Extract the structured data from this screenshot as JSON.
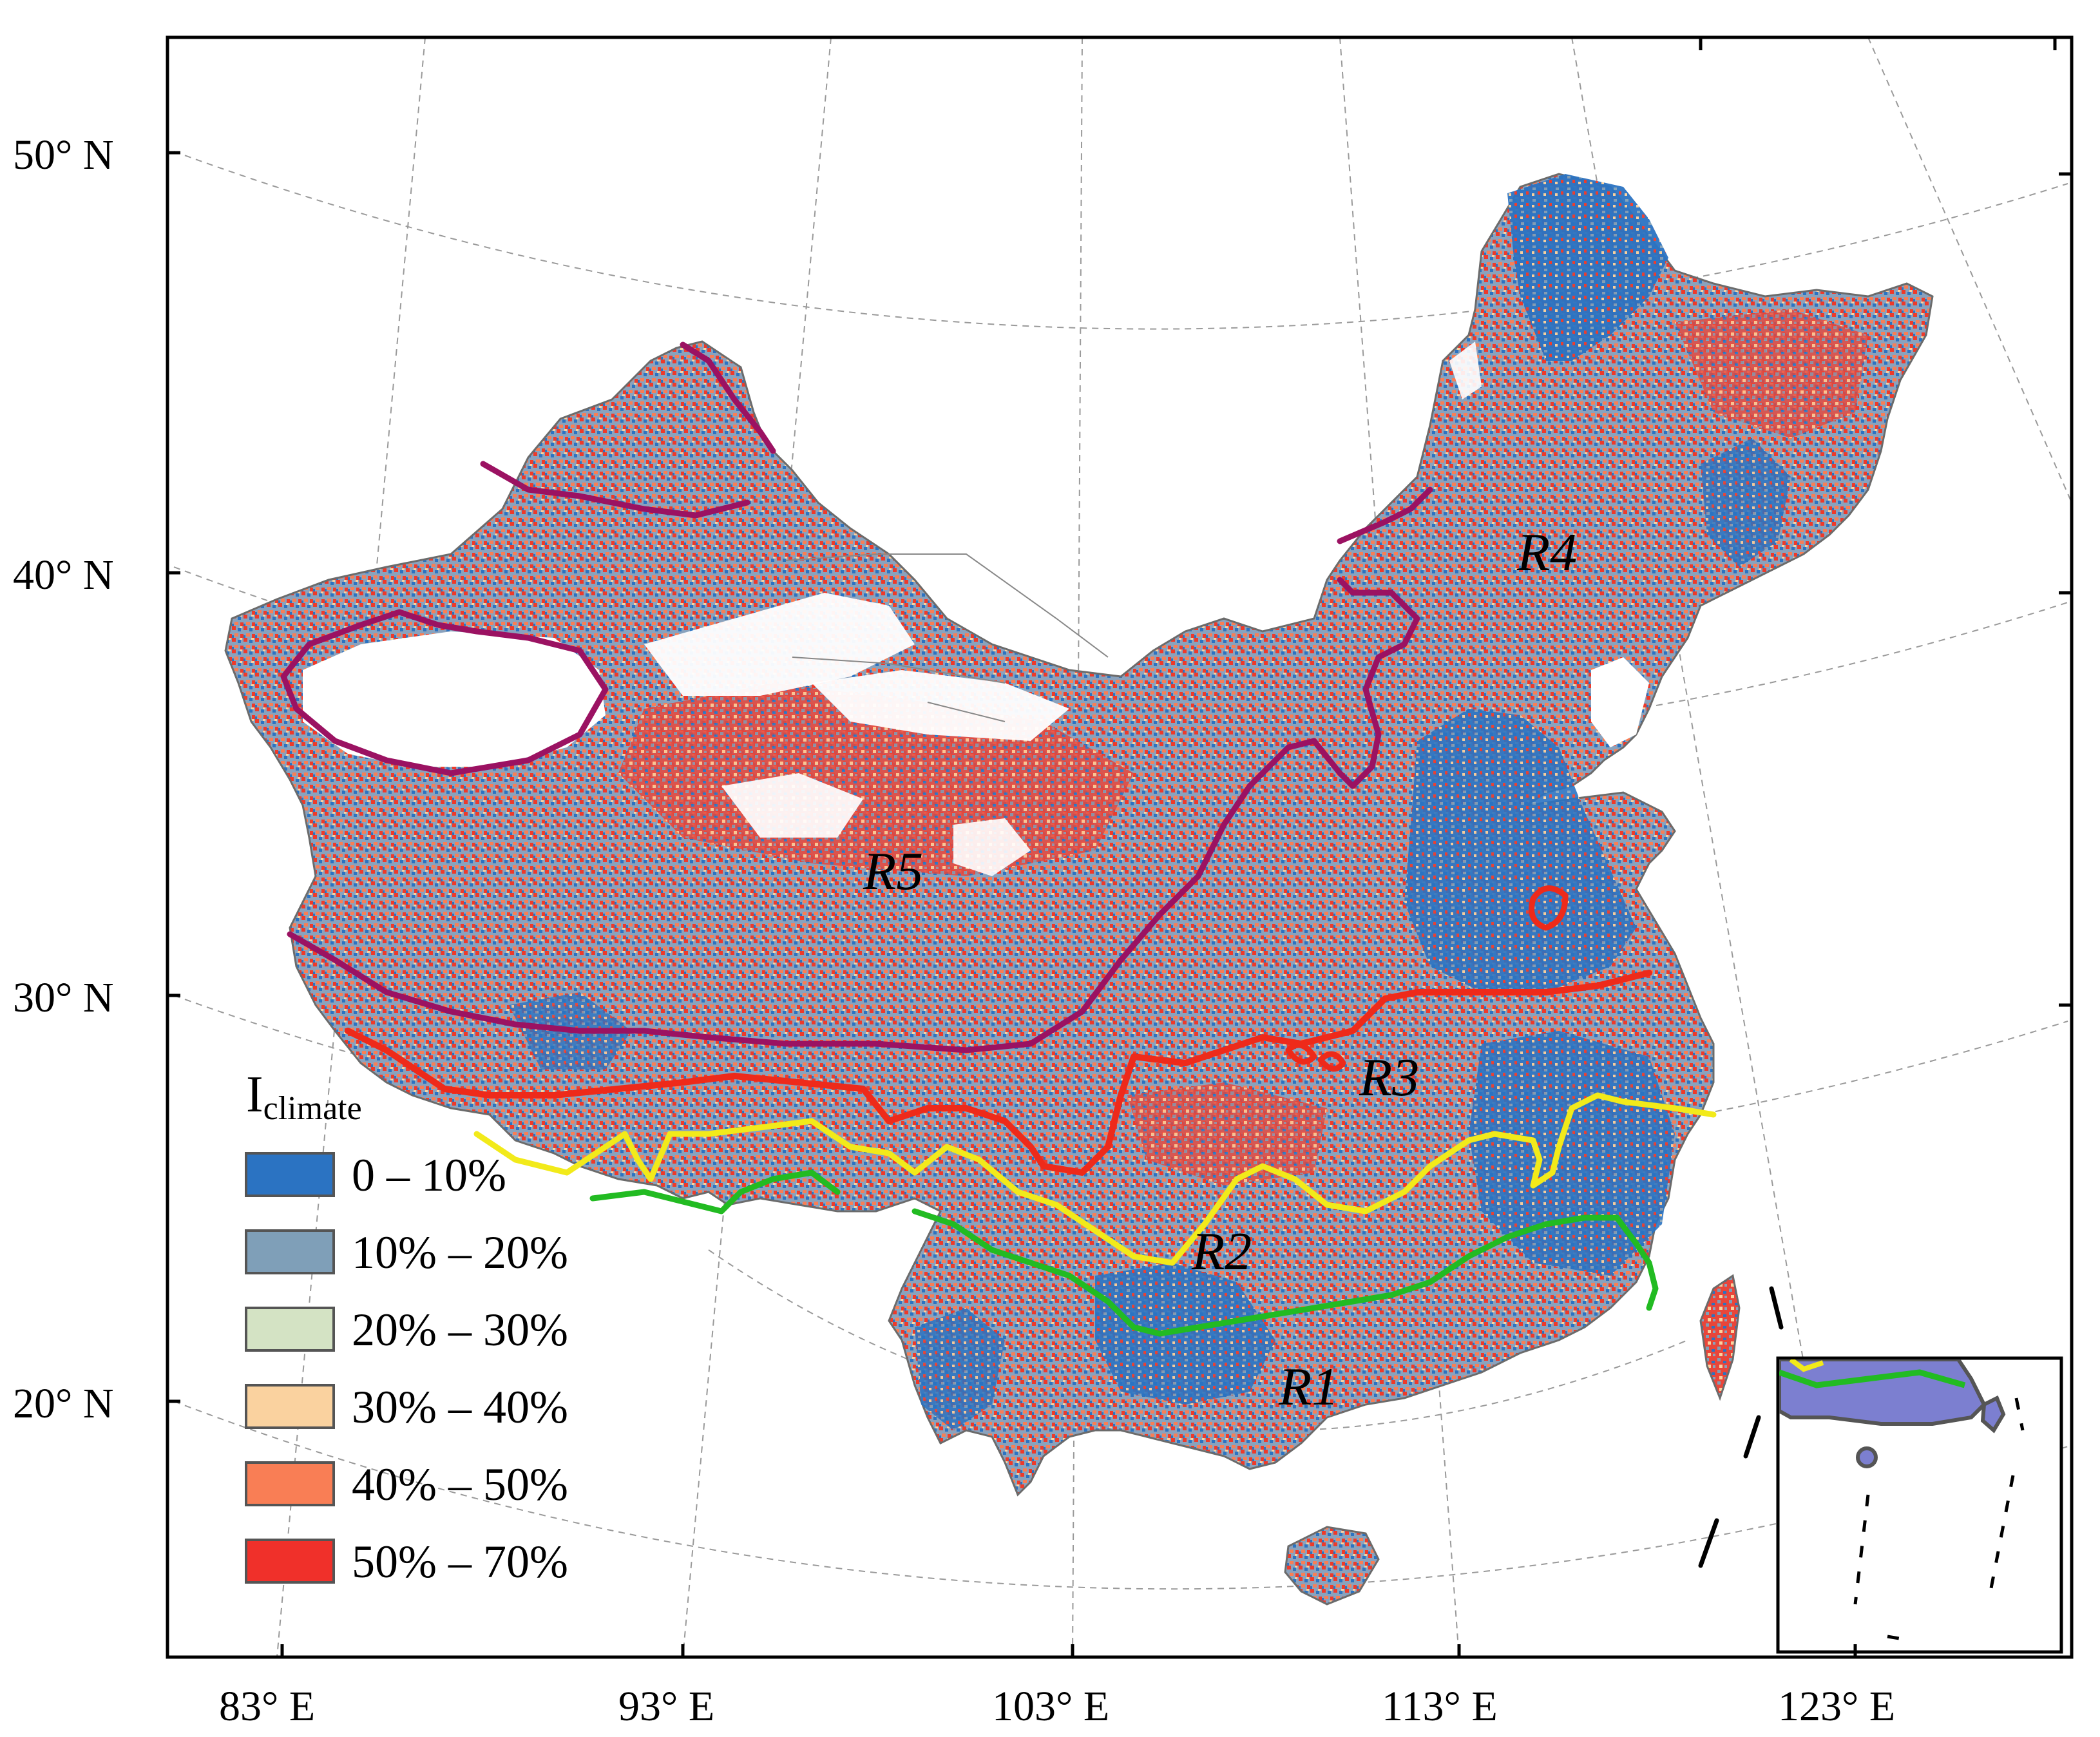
{
  "map": {
    "lat_labels": [
      "50° N",
      "40° N",
      "30° N",
      "20° N"
    ],
    "lon_labels": [
      "83° E",
      "93° E",
      "103° E",
      "113° E",
      "123° E"
    ],
    "region_labels": [
      "R1",
      "R2",
      "R3",
      "R4",
      "R5"
    ],
    "boundary_colors": {
      "R1_R2": "#22bb22",
      "R2_R3": "#f2ea1a",
      "R3_R4_R5": "#ee2a1a",
      "R4_R5": "#9b1262"
    }
  },
  "legend": {
    "title_main": "I",
    "title_sub": "climate",
    "items": [
      {
        "label": "0 – 10%",
        "color": "#2b73c2"
      },
      {
        "label": "10% – 20%",
        "color": "#7f9fb8"
      },
      {
        "label": "20% – 30%",
        "color": "#d4e3c4"
      },
      {
        "label": "30% – 40%",
        "color": "#fad29f"
      },
      {
        "label": "40% – 50%",
        "color": "#f97e55"
      },
      {
        "label": "50% – 70%",
        "color": "#f0302a"
      }
    ]
  }
}
